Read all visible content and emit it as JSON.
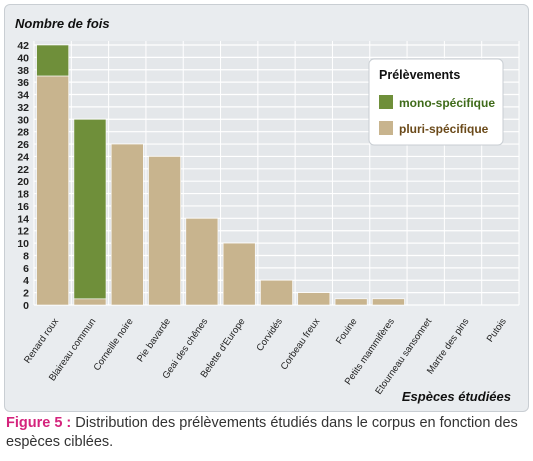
{
  "chart_data": {
    "type": "bar",
    "ylabel": "Nombre de fois",
    "xlabel": "Espèces étudiées",
    "ylim": [
      0,
      42
    ],
    "yticks": [
      0,
      2,
      4,
      6,
      8,
      10,
      12,
      14,
      16,
      18,
      20,
      22,
      24,
      26,
      28,
      30,
      32,
      34,
      36,
      38,
      40,
      42
    ],
    "grid": true,
    "stacked": true,
    "categories": [
      "Renard roux",
      "Blaireau commun",
      "Corneille noire",
      "Pie bavarde",
      "Geai des chênes",
      "Belette d'Europe",
      "Corvidés",
      "Corbeau freux",
      "Fouine",
      "Petits mammifères",
      "Etourneau sansonnet",
      "Martre des pins",
      "Putois"
    ],
    "series": [
      {
        "name": "pluri-spécifique",
        "color": "#c8b48e",
        "values": [
          37,
          1,
          26,
          24,
          14,
          10,
          4,
          2,
          1,
          1,
          0,
          0,
          0
        ]
      },
      {
        "name": "mono-spécifique",
        "color": "#6f8f3a",
        "values": [
          5,
          29,
          0,
          0,
          0,
          0,
          0,
          0,
          0,
          0,
          0,
          0,
          0
        ]
      }
    ],
    "legend": {
      "title": "Prélèvements",
      "position": "top-right"
    }
  },
  "caption": {
    "label": "Figure 5 :",
    "text": " Distribution des prélèvements étudiés dans le corpus en fonction des espèces ciblées."
  }
}
